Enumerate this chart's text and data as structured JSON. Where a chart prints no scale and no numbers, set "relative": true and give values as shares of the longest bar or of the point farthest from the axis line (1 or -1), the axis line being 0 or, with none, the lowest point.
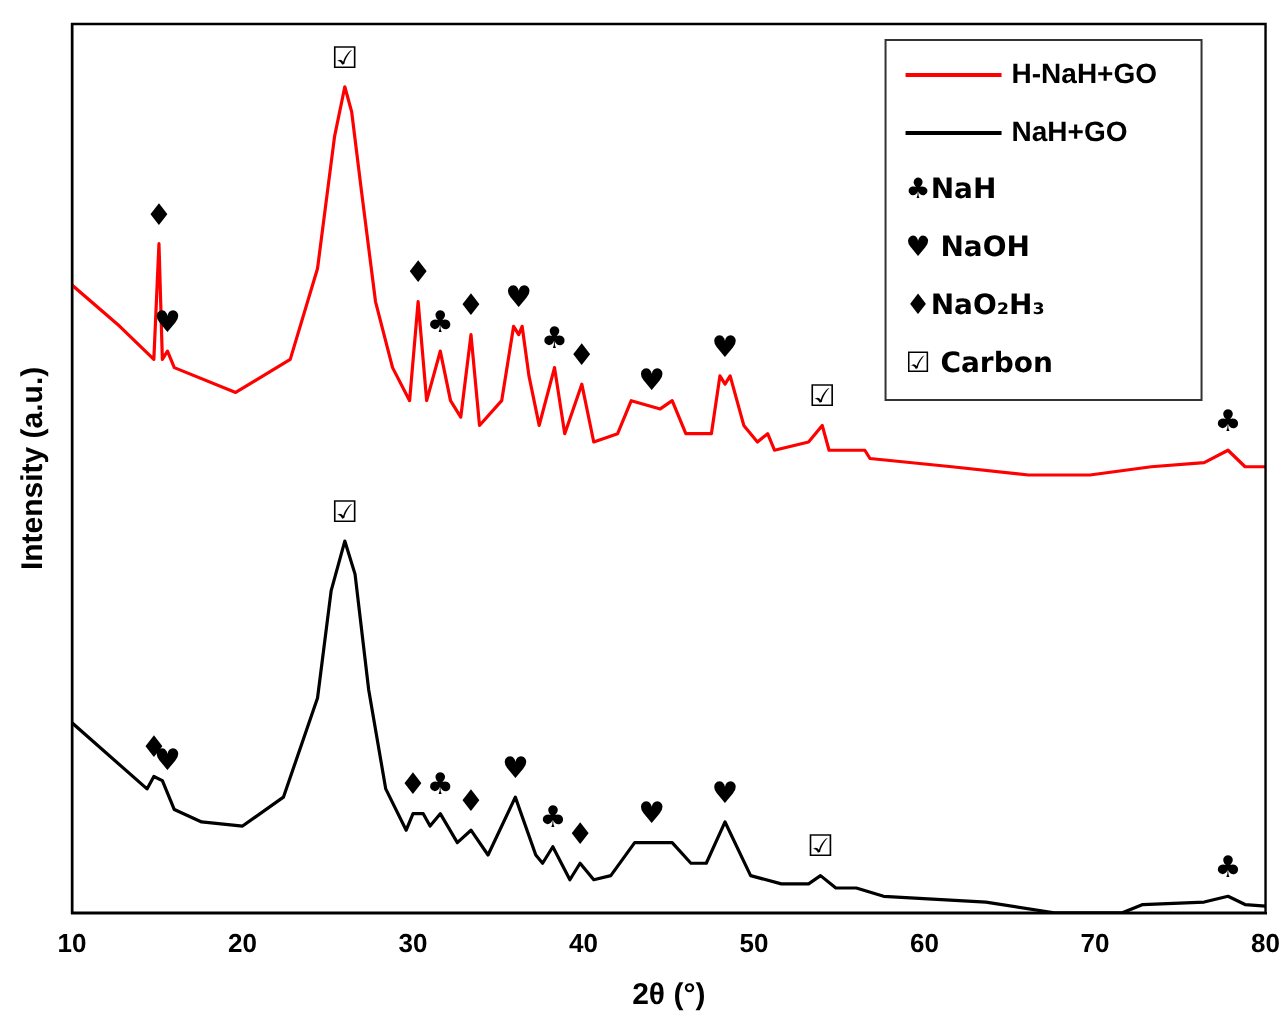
{
  "chart_data": {
    "type": "line",
    "relative": true,
    "xlabel": "2θ (°)",
    "ylabel": "Intensity (a.u.)",
    "xlim": [
      10,
      80
    ],
    "xticks": [
      10,
      20,
      30,
      40,
      50,
      60,
      70,
      80
    ],
    "legend": "top right",
    "grid": false,
    "marker": "none",
    "line_style": "solid",
    "series": [
      {
        "name": "H-NaH+GO",
        "color": "#ff0000",
        "x": [
          10,
          12.8,
          14.8,
          15.1,
          15.3,
          15.6,
          16.0,
          19.6,
          22.8,
          24.4,
          25.4,
          26.0,
          26.4,
          27.0,
          27.8,
          28.8,
          29.8,
          30.3,
          30.8,
          31.6,
          32.2,
          32.8,
          33.4,
          33.9,
          35.2,
          35.9,
          36.2,
          36.4,
          36.8,
          37.4,
          38.3,
          38.9,
          39.9,
          40.6,
          42.0,
          42.8,
          44.5,
          45.2,
          46.0,
          47.5,
          48.0,
          48.3,
          48.6,
          49.4,
          50.2,
          50.8,
          51.2,
          53.2,
          54.0,
          54.4,
          56.5,
          56.8,
          61.6,
          66.1,
          69.7,
          73.3,
          76.4,
          77.8,
          78.8,
          80
        ],
        "values": [
          0.76,
          0.71,
          0.67,
          0.81,
          0.67,
          0.68,
          0.66,
          0.63,
          0.67,
          0.78,
          0.94,
          1,
          0.97,
          0.87,
          0.74,
          0.66,
          0.62,
          0.74,
          0.62,
          0.68,
          0.62,
          0.6,
          0.7,
          0.59,
          0.62,
          0.71,
          0.7,
          0.71,
          0.65,
          0.59,
          0.66,
          0.58,
          0.64,
          0.57,
          0.58,
          0.62,
          0.61,
          0.62,
          0.58,
          0.58,
          0.65,
          0.64,
          0.65,
          0.59,
          0.57,
          0.58,
          0.56,
          0.57,
          0.59,
          0.56,
          0.56,
          0.55,
          0.54,
          0.53,
          0.53,
          0.54,
          0.545,
          0.56,
          0.54,
          0.54
        ]
      },
      {
        "name": "NaH+GO",
        "color": "#000000",
        "x": [
          10,
          14.4,
          14.8,
          15.3,
          16.0,
          17.6,
          20.0,
          22.4,
          24.4,
          25.2,
          26.0,
          26.6,
          27.4,
          28.4,
          29.6,
          30.0,
          30.6,
          31.0,
          31.6,
          32.6,
          33.4,
          34.4,
          36.0,
          37.2,
          37.6,
          38.2,
          39.2,
          39.8,
          40.6,
          41.6,
          43.0,
          44.8,
          45.2,
          46.3,
          47.2,
          48.3,
          49.8,
          51.6,
          53.2,
          53.9,
          54.8,
          56.0,
          57.6,
          63.6,
          67.6,
          71.6,
          72.8,
          76.4,
          77.8,
          78.8,
          80
        ],
        "values": [
          0.23,
          0.15,
          0.165,
          0.16,
          0.125,
          0.11,
          0.105,
          0.14,
          0.26,
          0.39,
          0.45,
          0.41,
          0.27,
          0.15,
          0.1,
          0.12,
          0.12,
          0.105,
          0.12,
          0.085,
          0.1,
          0.07,
          0.14,
          0.07,
          0.06,
          0.08,
          0.04,
          0.06,
          0.04,
          0.045,
          0.085,
          0.085,
          0.085,
          0.06,
          0.06,
          0.11,
          0.045,
          0.035,
          0.035,
          0.045,
          0.03,
          0.03,
          0.02,
          0.013,
          0,
          0,
          0.01,
          0.013,
          0.02,
          0.01,
          0.008
        ]
      }
    ],
    "annotations": [
      {
        "text": "♦",
        "x": 15.1,
        "y": 0.81
      },
      {
        "text": "♥",
        "x": 15.6,
        "y": 0.68
      },
      {
        "text": "☑",
        "x": 26.0,
        "y": 1
      },
      {
        "text": "♦",
        "x": 30.3,
        "y": 0.74
      },
      {
        "text": "♣",
        "x": 31.6,
        "y": 0.68
      },
      {
        "text": "♦",
        "x": 33.4,
        "y": 0.7
      },
      {
        "text": "♥",
        "x": 36.2,
        "y": 0.71
      },
      {
        "text": "♣",
        "x": 38.3,
        "y": 0.66
      },
      {
        "text": "♦",
        "x": 39.9,
        "y": 0.64
      },
      {
        "text": "♥",
        "x": 44.0,
        "y": 0.61
      },
      {
        "text": "♥",
        "x": 48.3,
        "y": 0.65
      },
      {
        "text": "☑",
        "x": 54.0,
        "y": 0.59
      },
      {
        "text": "♣",
        "x": 77.8,
        "y": 0.56
      },
      {
        "text": "♦",
        "x": 14.8,
        "y": 0.165
      },
      {
        "text": "♥",
        "x": 15.6,
        "y": 0.15
      },
      {
        "text": "☑",
        "x": 26.0,
        "y": 0.45
      },
      {
        "text": "♦",
        "x": 30.0,
        "y": 0.12
      },
      {
        "text": "♣",
        "x": 31.6,
        "y": 0.12
      },
      {
        "text": "♦",
        "x": 33.4,
        "y": 0.1
      },
      {
        "text": "♥",
        "x": 36.0,
        "y": 0.14
      },
      {
        "text": "♣",
        "x": 38.2,
        "y": 0.08
      },
      {
        "text": "♦",
        "x": 39.8,
        "y": 0.06
      },
      {
        "text": "♥",
        "x": 44.0,
        "y": 0.085
      },
      {
        "text": "♥",
        "x": 48.3,
        "y": 0.11
      },
      {
        "text": "☑",
        "x": 53.9,
        "y": 0.045
      },
      {
        "text": "♣",
        "x": 77.8,
        "y": 0.02
      },
      "♣NaH",
      "♥ NaOH",
      "♦NaO₂H₃",
      "☑ Carbon"
    ]
  }
}
